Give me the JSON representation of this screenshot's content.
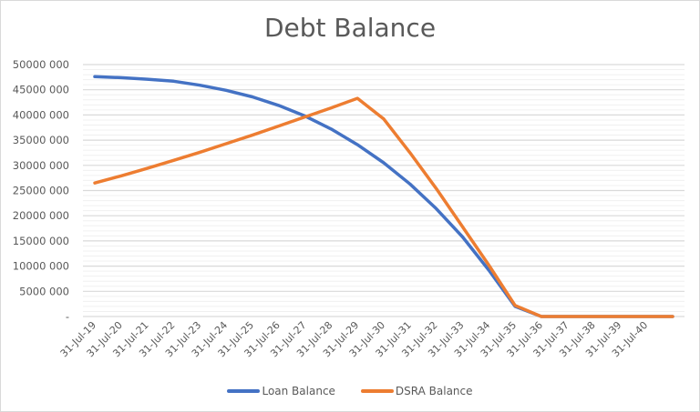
{
  "chart_data": {
    "type": "line",
    "title": "Debt Balance",
    "xlabel": "",
    "ylabel": "",
    "ylim": [
      0,
      50000000
    ],
    "yticks": [
      0,
      5000000,
      10000000,
      15000000,
      20000000,
      25000000,
      30000000,
      35000000,
      40000000,
      45000000,
      50000000
    ],
    "ytick_labels": [
      "-",
      "5000 000",
      "10000 000",
      "15000 000",
      "20000 000",
      "25000 000",
      "30000 000",
      "35000 000",
      "40000 000",
      "45000 000",
      "50000 000"
    ],
    "grid": true,
    "legend_position": "bottom",
    "categories": [
      "31-Jul-19",
      "31-Jul-20",
      "31-Jul-21",
      "31-Jul-22",
      "31-Jul-23",
      "31-Jul-24",
      "31-Jul-25",
      "31-Jul-26",
      "31-Jul-27",
      "31-Jul-28",
      "31-Jul-29",
      "31-Jul-30",
      "31-Jul-31",
      "31-Jul-32",
      "31-Jul-33",
      "31-Jul-34",
      "31-Jul-35",
      "31-Jul-36",
      "31-Jul-37",
      "31-Jul-38",
      "31-Jul-39",
      "31-Jul-40",
      ""
    ],
    "series": [
      {
        "name": "Loan Balance",
        "color": "#4472C4",
        "values": [
          47600000,
          47400000,
          47100000,
          46700000,
          45900000,
          44900000,
          43600000,
          41900000,
          39800000,
          37200000,
          34100000,
          30500000,
          26300000,
          21400000,
          15800000,
          9200000,
          2000000,
          0,
          0,
          0,
          0,
          0,
          0
        ]
      },
      {
        "name": "DSRA Balance",
        "color": "#ED7D31",
        "values": [
          26500000,
          27900000,
          29400000,
          31000000,
          32600000,
          34300000,
          36000000,
          37800000,
          39600000,
          41400000,
          43300000,
          39200000,
          32500000,
          25400000,
          17800000,
          10200000,
          2200000,
          0,
          0,
          0,
          0,
          0,
          0
        ]
      }
    ]
  },
  "legend": {
    "items": [
      {
        "label": "Loan Balance",
        "color": "#4472C4"
      },
      {
        "label": "DSRA Balance",
        "color": "#ED7D31"
      }
    ]
  }
}
